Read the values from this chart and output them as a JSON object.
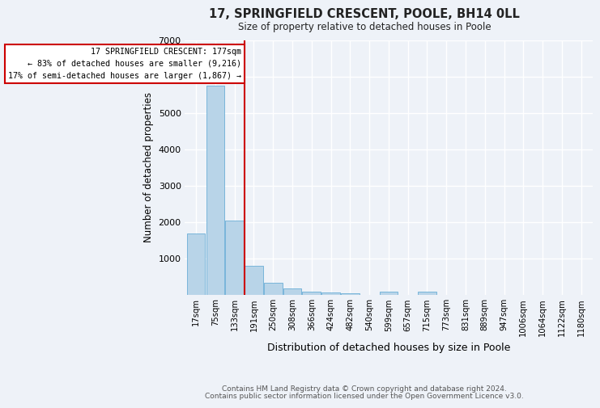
{
  "title": "17, SPRINGFIELD CRESCENT, POOLE, BH14 0LL",
  "subtitle": "Size of property relative to detached houses in Poole",
  "xlabel": "Distribution of detached houses by size in Poole",
  "ylabel": "Number of detached properties",
  "footnote1": "Contains HM Land Registry data © Crown copyright and database right 2024.",
  "footnote2": "Contains public sector information licensed under the Open Government Licence v3.0.",
  "bar_labels": [
    "17sqm",
    "75sqm",
    "133sqm",
    "191sqm",
    "250sqm",
    "308sqm",
    "366sqm",
    "424sqm",
    "482sqm",
    "540sqm",
    "599sqm",
    "657sqm",
    "715sqm",
    "773sqm",
    "831sqm",
    "889sqm",
    "947sqm",
    "1006sqm",
    "1064sqm",
    "1122sqm",
    "1180sqm"
  ],
  "bar_values": [
    1700,
    5750,
    2050,
    800,
    330,
    175,
    90,
    75,
    55,
    0,
    80,
    0,
    90,
    0,
    0,
    0,
    0,
    0,
    0,
    0,
    0
  ],
  "bar_color": "#b8d4e8",
  "bar_edge_color": "#6aaed6",
  "property_line_x": 2.5,
  "property_line_color": "#cc0000",
  "annotation_text": "17 SPRINGFIELD CRESCENT: 177sqm\n← 83% of detached houses are smaller (9,216)\n17% of semi-detached houses are larger (1,867) →",
  "annotation_box_color": "#cc0000",
  "ylim": [
    0,
    7000
  ],
  "yticks": [
    0,
    1000,
    2000,
    3000,
    4000,
    5000,
    6000,
    7000
  ],
  "background_color": "#eef2f8",
  "grid_color": "#ffffff"
}
